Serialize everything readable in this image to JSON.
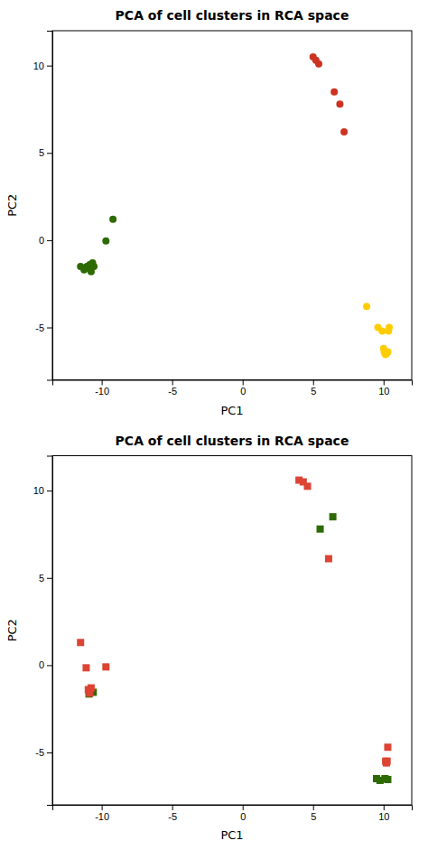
{
  "chart_data": [
    {
      "type": "scatter",
      "title": "PCA of cell clusters in RCA space",
      "xlabel": "PC1",
      "ylabel": "PC2",
      "xlim": [
        -13.5,
        12.0
      ],
      "ylim": [
        -8.0,
        12.0
      ],
      "xticks": [
        -10,
        -5,
        0,
        5,
        10
      ],
      "yticks": [
        -5,
        0,
        5,
        10
      ],
      "series": [
        {
          "color": "#2d6a00",
          "marker": "circle",
          "x": [
            -11.5,
            -11.25,
            -11.05,
            -10.95,
            -10.85,
            -10.75,
            -10.65,
            -10.55,
            -9.7,
            -9.2
          ],
          "values": [
            -1.5,
            -1.7,
            -1.5,
            -1.6,
            -1.4,
            -1.8,
            -1.3,
            -1.5,
            -0.05,
            1.2
          ]
        },
        {
          "color": "#ffcc00",
          "marker": "circle",
          "x": [
            8.8,
            9.6,
            9.9,
            10.0,
            10.05,
            10.1,
            10.15,
            10.2,
            10.25,
            10.3,
            10.35,
            10.4
          ],
          "values": [
            -3.8,
            -5.0,
            -5.2,
            -6.2,
            -6.4,
            -6.5,
            -6.55,
            -6.5,
            -6.45,
            -6.4,
            -5.2,
            -5.0
          ]
        },
        {
          "color": "#cc3322",
          "marker": "circle",
          "x": [
            5.0,
            5.2,
            5.4,
            6.5,
            6.9,
            7.2
          ],
          "values": [
            10.5,
            10.3,
            10.1,
            8.5,
            7.8,
            6.2
          ]
        }
      ]
    },
    {
      "type": "scatter",
      "title": "PCA of cell clusters in RCA space",
      "xlabel": "PC1",
      "ylabel": "PC2",
      "xlim": [
        -13.5,
        12.0
      ],
      "ylim": [
        -8.0,
        12.0
      ],
      "xticks": [
        -10,
        -5,
        0,
        5,
        10
      ],
      "yticks": [
        -5,
        0,
        5,
        10
      ],
      "series": [
        {
          "color": "#2d6a00",
          "marker": "square",
          "x": [
            5.5,
            6.4,
            9.5,
            9.75,
            10.1,
            10.3,
            -10.9,
            -10.6
          ],
          "values": [
            7.8,
            8.5,
            -6.5,
            -6.6,
            -6.5,
            -6.55,
            -1.65,
            -1.55
          ]
        },
        {
          "color": "#dd4433",
          "marker": "square",
          "x": [
            4.0,
            4.3,
            4.6,
            6.1,
            10.15,
            10.2,
            10.25,
            10.3,
            -11.5,
            -11.1,
            -10.95,
            -10.85,
            -10.75,
            -9.7
          ],
          "values": [
            10.6,
            10.5,
            10.25,
            6.1,
            -5.5,
            -5.6,
            -5.5,
            -4.7,
            1.3,
            -0.15,
            -1.4,
            -1.6,
            -1.3,
            -0.1
          ]
        }
      ]
    }
  ]
}
